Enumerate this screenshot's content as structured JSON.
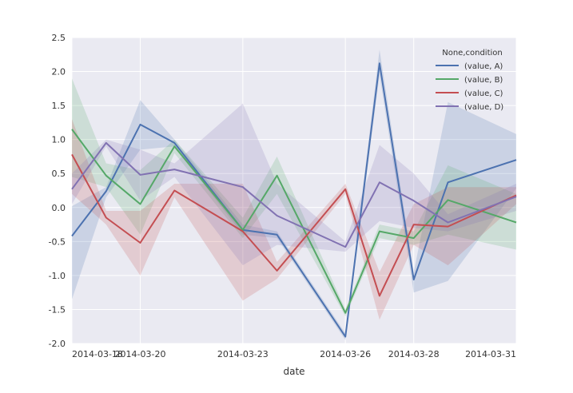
{
  "chart_data": {
    "type": "line",
    "xlabel": "date",
    "ylabel": "",
    "ylim": [
      -2.0,
      2.5
    ],
    "y_ticks": [
      "2.5",
      "2.0",
      "1.5",
      "1.0",
      "0.5",
      "0.0",
      "-0.5",
      "-1.0",
      "-1.5",
      "-2.0"
    ],
    "y_tick_values": [
      2.5,
      2.0,
      1.5,
      1.0,
      0.5,
      0.0,
      -0.5,
      -1.0,
      -1.5,
      -2.0
    ],
    "x_ticks": [
      "2014-03-18",
      "2014-03-20",
      "2014-03-23",
      "2014-03-26",
      "2014-03-28",
      "2014-03-31"
    ],
    "x": [
      "2014-03-18",
      "2014-03-19",
      "2014-03-20",
      "2014-03-21",
      "2014-03-23",
      "2014-03-24",
      "2014-03-26",
      "2014-03-27",
      "2014-03-28",
      "2014-03-29",
      "2014-03-31"
    ],
    "grid": true,
    "legend_title": "None,condition",
    "legend_position": "top-right",
    "series": [
      {
        "name": "(value, A)",
        "color": "#4c72b0",
        "values": [
          -0.42,
          0.24,
          1.22,
          0.95,
          -0.33,
          -0.4,
          -1.9,
          2.12,
          -1.06,
          0.37,
          0.7
        ],
        "band_lower": [
          -1.35,
          0.15,
          0.85,
          0.9,
          -0.4,
          -0.45,
          -1.95,
          1.95,
          -1.25,
          -1.08,
          0.28
        ],
        "band_upper": [
          0.02,
          0.3,
          1.58,
          1.0,
          -0.25,
          -0.35,
          -1.85,
          2.32,
          -0.95,
          1.55,
          1.08
        ]
      },
      {
        "name": "(value, B)",
        "color": "#55a868",
        "values": [
          1.15,
          0.47,
          0.05,
          0.9,
          -0.33,
          0.47,
          -1.55,
          -0.35,
          -0.45,
          0.11,
          -0.22
        ],
        "band_lower": [
          0.45,
          0.3,
          -0.4,
          0.8,
          -0.45,
          0.2,
          -1.6,
          -0.45,
          -0.55,
          -0.4,
          -0.62
        ],
        "band_upper": [
          1.9,
          0.65,
          0.55,
          1.0,
          -0.15,
          0.75,
          -1.5,
          -0.25,
          -0.35,
          0.62,
          0.2
        ]
      },
      {
        "name": "(value, C)",
        "color": "#c44e52",
        "values": [
          0.78,
          -0.15,
          -0.52,
          0.25,
          -0.35,
          -0.93,
          0.27,
          -1.3,
          -0.25,
          -0.28,
          0.18
        ],
        "band_lower": [
          0.2,
          -0.25,
          -1.0,
          0.15,
          -1.37,
          -1.05,
          0.2,
          -1.65,
          -0.55,
          -0.85,
          0.05
        ],
        "band_upper": [
          1.3,
          -0.05,
          -0.05,
          0.35,
          0.35,
          -0.8,
          0.35,
          -0.95,
          0.05,
          0.3,
          0.3
        ]
      },
      {
        "name": "(value, D)",
        "color": "#8172b2",
        "values": [
          0.27,
          0.95,
          0.48,
          0.56,
          0.3,
          -0.12,
          -0.58,
          0.37,
          0.1,
          -0.22,
          0.16
        ],
        "band_lower": [
          0.05,
          0.9,
          0.1,
          0.45,
          -0.85,
          -0.55,
          -0.65,
          -0.2,
          -0.3,
          -0.35,
          -0.05
        ],
        "band_upper": [
          0.5,
          1.0,
          0.85,
          0.65,
          1.53,
          0.35,
          -0.5,
          0.92,
          0.5,
          -0.1,
          0.35
        ]
      }
    ]
  }
}
